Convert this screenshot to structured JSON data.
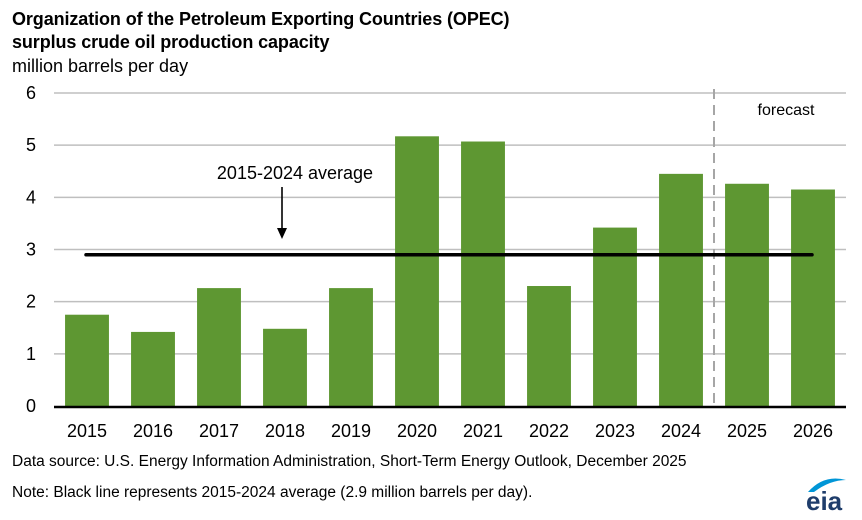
{
  "header": {
    "title_line1": "Organization of the Petroleum Exporting Countries (OPEC)",
    "title_line2": "surplus crude oil production capacity",
    "units": "million barrels per day"
  },
  "chart_data": {
    "type": "bar",
    "title": "Organization of the Petroleum Exporting Countries (OPEC) surplus crude oil production capacity",
    "xlabel": "",
    "ylabel": "million barrels per day",
    "categories": [
      "2015",
      "2016",
      "2017",
      "2018",
      "2019",
      "2020",
      "2021",
      "2022",
      "2023",
      "2024",
      "2025",
      "2026"
    ],
    "values": [
      1.75,
      1.42,
      2.26,
      1.48,
      2.26,
      5.17,
      5.07,
      2.3,
      3.42,
      4.45,
      4.26,
      4.15
    ],
    "ylim": [
      0,
      6
    ],
    "yticks": [
      0,
      1,
      2,
      3,
      4,
      5,
      6
    ],
    "grid": true,
    "bar_color": "#5e9732",
    "average_line": {
      "value": 2.9,
      "label": "2015-2024 average",
      "color": "#000000"
    },
    "forecast": {
      "label": "forecast",
      "start_category": "2025",
      "divider_color": "#a6a6a6"
    }
  },
  "footer": {
    "source": "Data source: U.S. Energy Information Administration, Short-Term Energy Outlook, December 2025",
    "note": "Note: Black line represents 2015-2024 average (2.9 million barrels per day)."
  },
  "logo": {
    "text": "eia",
    "arc_color": "#0096d7",
    "text_color": "#1f3d6b"
  }
}
